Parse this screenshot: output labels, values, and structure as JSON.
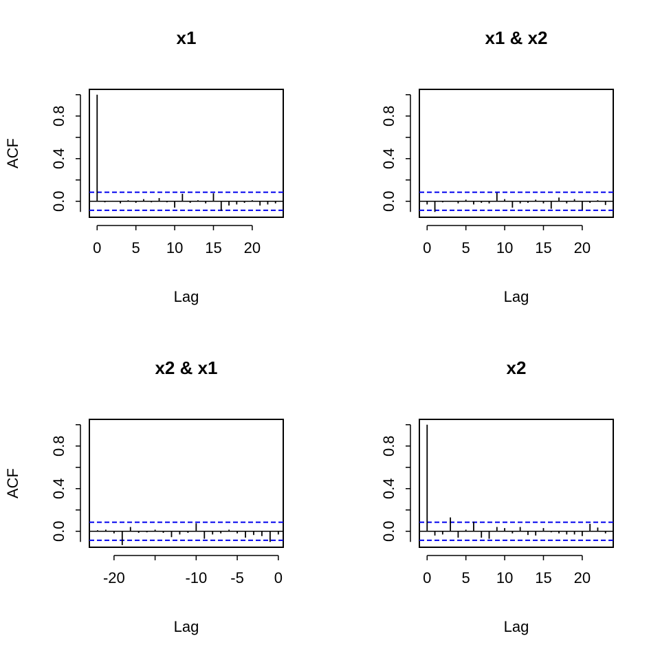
{
  "chart_data": [
    {
      "type": "bar",
      "title": "x1",
      "xlabel": "Lag",
      "ylabel": "ACF",
      "xlim": [
        -1,
        24
      ],
      "ylim": [
        -0.15,
        1.05
      ],
      "xticks": [
        0,
        5,
        10,
        15,
        20
      ],
      "yticks": [
        0.0,
        0.4,
        0.8
      ],
      "ci": 0.085,
      "lags": [
        0,
        1,
        2,
        3,
        4,
        5,
        6,
        7,
        8,
        9,
        10,
        11,
        12,
        13,
        14,
        15,
        16,
        17,
        18,
        19,
        20,
        21,
        22,
        23
      ],
      "values": [
        1.0,
        -0.01,
        0.005,
        -0.02,
        0.01,
        -0.015,
        0.02,
        -0.01,
        0.03,
        -0.01,
        -0.06,
        0.07,
        -0.015,
        0.01,
        -0.02,
        0.075,
        -0.09,
        -0.04,
        -0.03,
        -0.015,
        0.01,
        -0.04,
        -0.03,
        -0.02
      ]
    },
    {
      "type": "bar",
      "title": "x1 & x2",
      "xlabel": "Lag",
      "ylabel": "",
      "xlim": [
        -1,
        24
      ],
      "ylim": [
        -0.15,
        1.05
      ],
      "xticks": [
        0,
        5,
        10,
        15,
        20
      ],
      "yticks": [
        0.0,
        0.4,
        0.8
      ],
      "ci": 0.085,
      "lags": [
        0,
        1,
        2,
        3,
        4,
        5,
        6,
        7,
        8,
        9,
        10,
        11,
        12,
        13,
        14,
        15,
        16,
        17,
        18,
        19,
        20,
        21,
        22,
        23
      ],
      "values": [
        -0.03,
        -0.1,
        -0.01,
        -0.005,
        -0.02,
        0.015,
        -0.03,
        -0.015,
        -0.02,
        0.08,
        0.02,
        -0.06,
        -0.02,
        -0.015,
        0.015,
        -0.02,
        -0.07,
        0.035,
        -0.02,
        0.02,
        -0.08,
        -0.015,
        0.01,
        -0.035
      ]
    },
    {
      "type": "bar",
      "title": "x2 & x1",
      "xlabel": "Lag",
      "ylabel": "ACF",
      "xlim": [
        -23,
        0.6
      ],
      "ylim": [
        -0.15,
        1.05
      ],
      "xticks": [
        -20,
        -10,
        -5,
        0
      ],
      "yticks": [
        0.0,
        0.4,
        0.8
      ],
      "ci": 0.085,
      "lags": [
        -23,
        -22,
        -21,
        -20,
        -19,
        -18,
        -17,
        -16,
        -15,
        -14,
        -13,
        -12,
        -11,
        -10,
        -9,
        -8,
        -7,
        -6,
        -5,
        -4,
        -3,
        -2,
        -1,
        0
      ],
      "values": [
        -0.035,
        0.01,
        0.015,
        -0.02,
        -0.13,
        0.04,
        -0.015,
        -0.01,
        0.015,
        -0.015,
        -0.055,
        -0.03,
        -0.015,
        0.075,
        -0.07,
        -0.03,
        -0.02,
        0.015,
        -0.02,
        -0.06,
        -0.035,
        -0.045,
        -0.1,
        -0.03
      ]
    },
    {
      "type": "bar",
      "title": "x2",
      "xlabel": "Lag",
      "ylabel": "",
      "xlim": [
        -1,
        24
      ],
      "ylim": [
        -0.15,
        1.05
      ],
      "xticks": [
        0,
        5,
        10,
        15,
        20
      ],
      "yticks": [
        0.0,
        0.4,
        0.8
      ],
      "ci": 0.085,
      "lags": [
        0,
        1,
        2,
        3,
        4,
        5,
        6,
        7,
        8,
        9,
        10,
        11,
        12,
        13,
        14,
        15,
        16,
        17,
        18,
        19,
        20,
        21,
        22,
        23
      ],
      "values": [
        1.0,
        -0.04,
        -0.03,
        0.13,
        -0.06,
        0.015,
        0.09,
        -0.06,
        -0.07,
        0.04,
        0.03,
        -0.02,
        0.04,
        -0.035,
        -0.04,
        0.03,
        -0.01,
        -0.02,
        -0.03,
        -0.03,
        -0.045,
        0.07,
        0.035,
        -0.02
      ]
    }
  ]
}
